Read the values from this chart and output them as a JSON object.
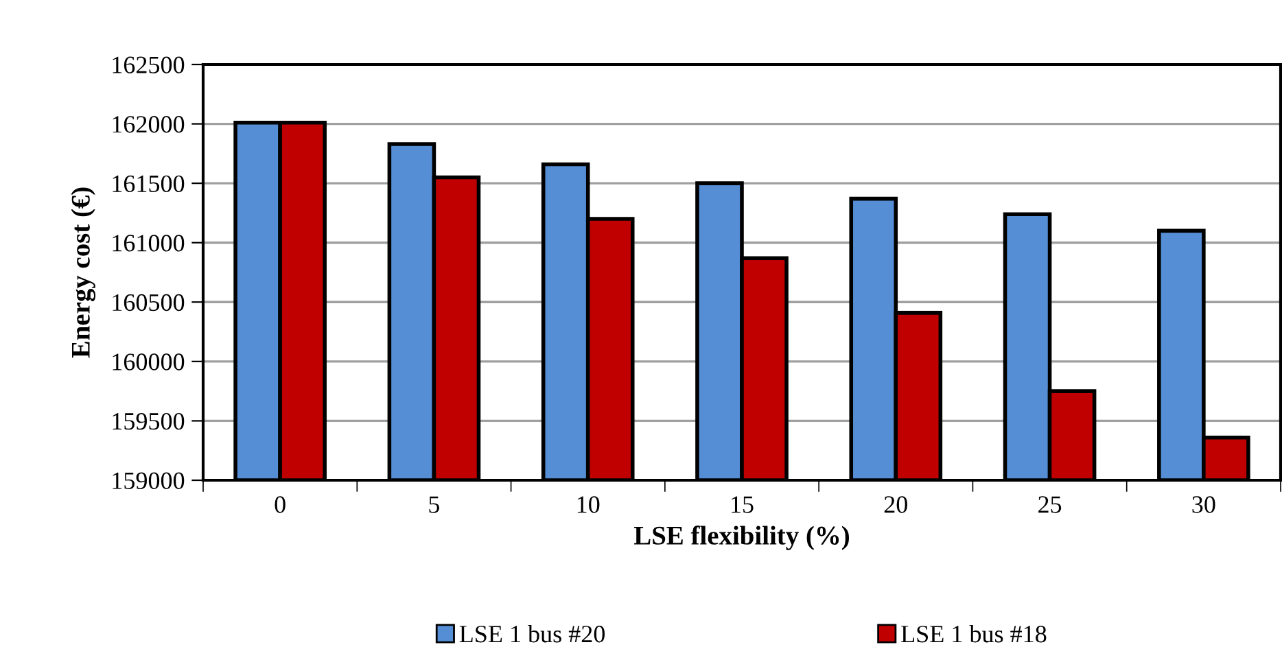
{
  "chart_data": {
    "type": "bar",
    "xlabel": "LSE flexibility (%)",
    "ylabel": "Energy cost (€)",
    "categories": [
      "0",
      "5",
      "10",
      "15",
      "20",
      "25",
      "30"
    ],
    "series": [
      {
        "name": "LSE 1 bus #20",
        "color": "#558ed5",
        "values": [
          162010,
          161830,
          161660,
          161500,
          161370,
          161240,
          161100
        ]
      },
      {
        "name": "LSE 1 bus #18",
        "color": "#c00000",
        "values": [
          162010,
          161550,
          161200,
          160870,
          160410,
          159750,
          159360
        ]
      }
    ],
    "ylim": [
      159000,
      162500
    ],
    "yticks": [
      159000,
      159500,
      160000,
      160500,
      161000,
      161500,
      162000,
      162500
    ],
    "grid": "y",
    "legend": "bottom"
  }
}
